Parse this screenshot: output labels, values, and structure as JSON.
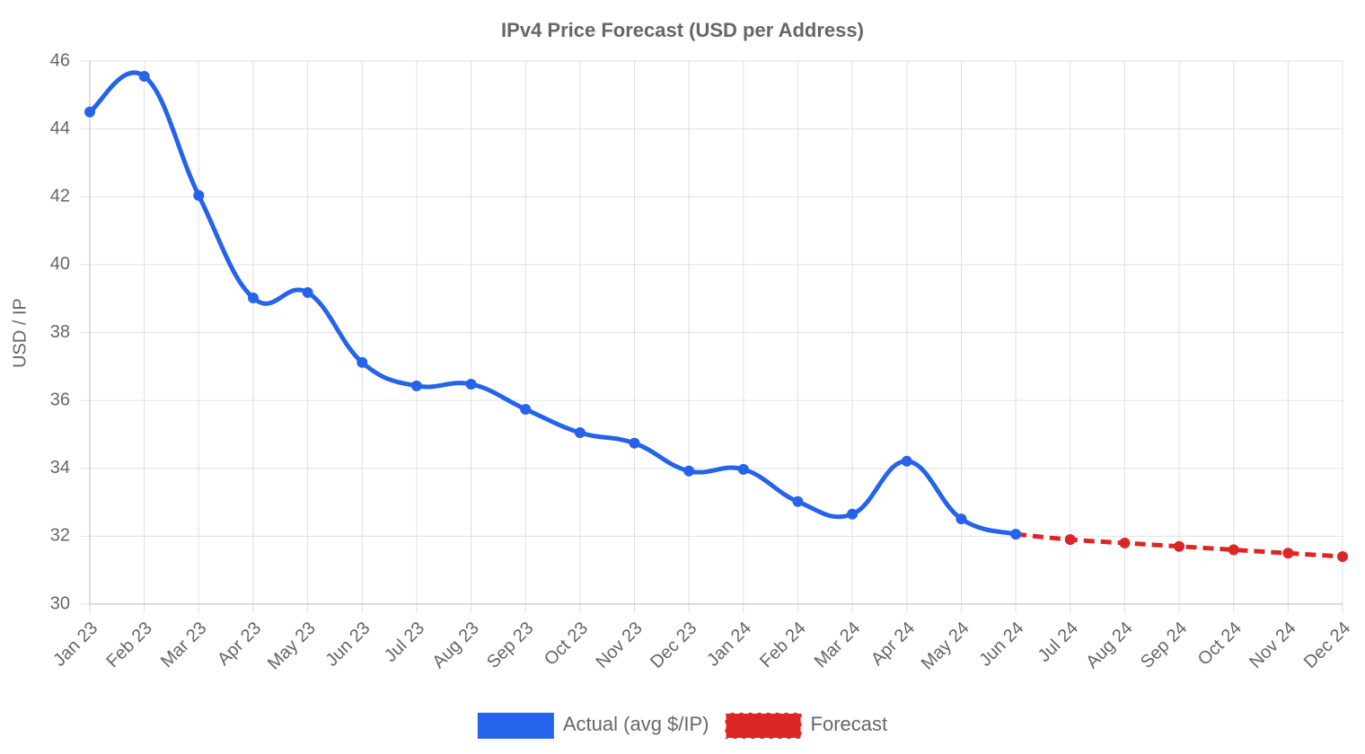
{
  "chart_data": {
    "type": "line",
    "title": "IPv4 Price Forecast (USD per Address)",
    "y_label": "USD / IP",
    "categories": [
      "Jan 23",
      "Feb 23",
      "Mar 23",
      "Apr 23",
      "May 23",
      "Jun 23",
      "Jul 23",
      "Aug 23",
      "Sep 23",
      "Oct 23",
      "Nov 23",
      "Dec 23",
      "Jan 24",
      "Feb 24",
      "Mar 24",
      "Apr 24",
      "May 24",
      "Jun 24",
      "Jul 24",
      "Aug 24",
      "Sep 24",
      "Oct 24",
      "Nov 24",
      "Dec 24"
    ],
    "series": [
      {
        "name": "Actual (avg $/IP)",
        "color": "#2563eb",
        "line_style": "solid",
        "values": [
          44.5,
          45.55,
          42.04,
          39.02,
          39.18,
          37.12,
          36.43,
          36.48,
          35.74,
          35.05,
          34.74,
          33.92,
          33.97,
          33.02,
          32.65,
          34.21,
          32.51,
          32.06,
          null,
          null,
          null,
          null,
          null,
          null
        ]
      },
      {
        "name": "Forecast",
        "color": "#dc2626",
        "line_style": "dashed",
        "values": [
          null,
          null,
          null,
          null,
          null,
          null,
          null,
          null,
          null,
          null,
          null,
          null,
          null,
          null,
          null,
          null,
          null,
          32.06,
          31.9,
          31.8,
          31.7,
          31.6,
          31.5,
          31.4
        ]
      }
    ],
    "ylim": [
      30,
      46
    ],
    "yticks": [
      30,
      32,
      34,
      36,
      38,
      40,
      42,
      44,
      46
    ],
    "grid": true,
    "legend": "bottom"
  }
}
